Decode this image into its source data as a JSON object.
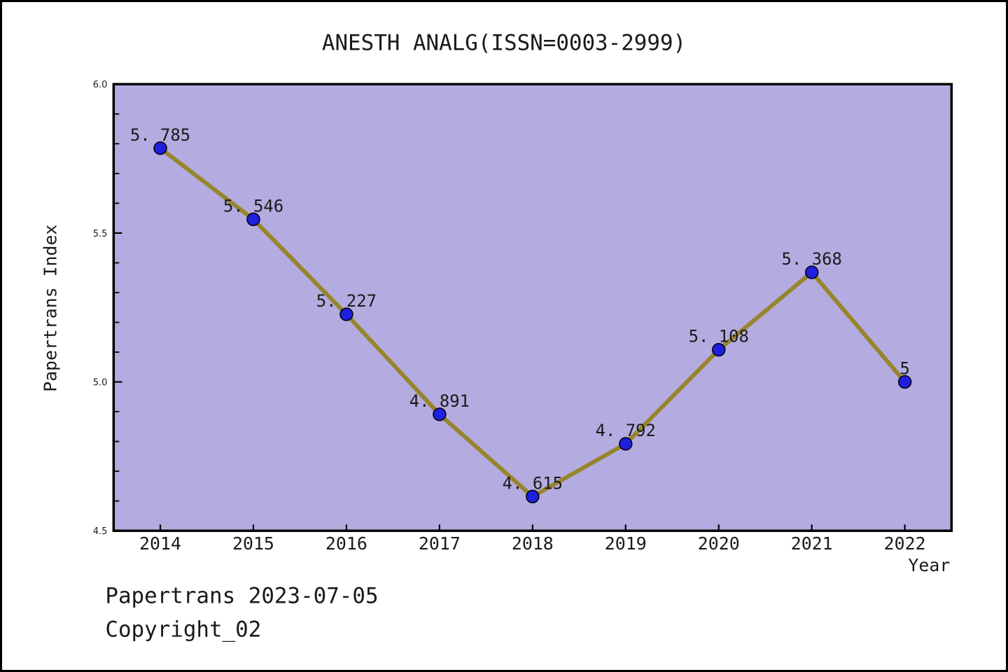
{
  "figure": {
    "footer_line1": "Papertrans 2023-07-05",
    "footer_line2": "Copyright_02"
  },
  "chart_data": {
    "type": "line",
    "title": "ANESTH ANALG(ISSN=0003-2999)",
    "xlabel": "Year",
    "ylabel": "Papertrans Index",
    "categories": [
      2014,
      2015,
      2016,
      2017,
      2018,
      2019,
      2020,
      2021,
      2022
    ],
    "values": [
      5.785,
      5.546,
      5.227,
      4.891,
      4.615,
      4.792,
      5.108,
      5.368,
      5
    ],
    "point_labels": [
      "5. 785",
      "5. 546",
      "5. 227",
      "4. 891",
      "4. 615",
      "4. 792",
      "5. 108",
      "5. 368",
      "5"
    ],
    "ylim": [
      4.5,
      6.0
    ],
    "y_major_ticks": [
      4.5,
      5.0,
      5.5,
      6.0
    ],
    "y_major_tick_labels": [
      "4.5",
      "5.0",
      "5.5",
      "6.0"
    ],
    "y_minor_tick_step": 0.1,
    "grid": false,
    "legend": false,
    "colors": {
      "plot_bg": "#b4ace0",
      "line": "#97852e",
      "marker": "#1f1fdd",
      "marker_edge": "#000000",
      "axis": "#000000",
      "text": "#1a1a1a",
      "figure_bg": "#ffffff",
      "figure_border": "#000000"
    }
  }
}
